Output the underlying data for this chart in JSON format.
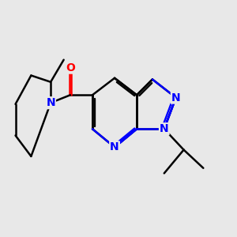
{
  "bg_color": "#e8e8e8",
  "bond_color": "#000000",
  "nitrogen_color": "#0000ff",
  "oxygen_color": "#ff0000",
  "line_width": 1.8,
  "font_size": 10,
  "fig_size": [
    3.0,
    3.0
  ],
  "dpi": 100,
  "xlim": [
    0,
    10
  ],
  "ylim": [
    0,
    10
  ]
}
